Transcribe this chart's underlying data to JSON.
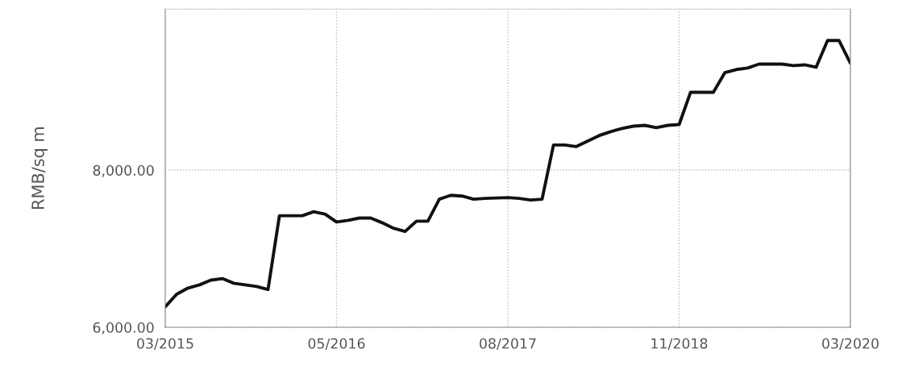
{
  "chart_data": {
    "type": "line",
    "ylabel": "RMB/sq m",
    "categories": [
      "03/2015",
      null,
      null,
      null,
      null,
      null,
      null,
      null,
      null,
      null,
      null,
      null,
      null,
      null,
      null,
      "05/2016",
      null,
      null,
      null,
      null,
      null,
      null,
      null,
      null,
      null,
      null,
      null,
      null,
      null,
      null,
      "08/2017",
      null,
      null,
      null,
      null,
      null,
      null,
      null,
      null,
      null,
      null,
      null,
      null,
      null,
      null,
      "11/2018",
      null,
      null,
      null,
      null,
      null,
      null,
      null,
      null,
      null,
      null,
      null,
      null,
      null,
      null,
      "03/2020"
    ],
    "series": [
      {
        "color": "#111111",
        "values": [
          6260,
          6420,
          6500,
          6540,
          6600,
          6620,
          6560,
          6540,
          6520,
          6480,
          7420,
          7420,
          7420,
          7470,
          7440,
          7340,
          7360,
          7390,
          7390,
          7330,
          7260,
          7220,
          7350,
          7350,
          7630,
          7680,
          7670,
          7630,
          7640,
          7645,
          7650,
          7640,
          7620,
          7630,
          8320,
          8320,
          8300,
          8370,
          8440,
          8490,
          8530,
          8560,
          8570,
          8540,
          8570,
          8580,
          8990,
          8990,
          8990,
          9240,
          9280,
          9300,
          9350,
          9350,
          9350,
          9330,
          9340,
          9310,
          9650,
          9650,
          9360
        ]
      }
    ],
    "ylim": [
      6000,
      10050
    ],
    "yticks": [
      {
        "value": 6000,
        "label": "6,000.00"
      },
      {
        "value": 8000,
        "label": "8,000.00"
      }
    ],
    "grid": true,
    "marker": "none",
    "line_style": "solid"
  }
}
